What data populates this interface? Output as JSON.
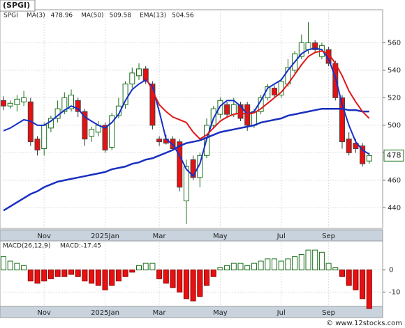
{
  "chart_data": [
    {
      "type": "candlestick",
      "title": "(SPGI)",
      "symbol": "SPGI",
      "symbol_color": "#1a7a1a",
      "categories": [
        null,
        null,
        null,
        null,
        null,
        null,
        "Nov",
        null,
        null,
        null,
        null,
        null,
        null,
        null,
        null,
        "2025Jan",
        null,
        null,
        null,
        null,
        null,
        null,
        null,
        "Mar",
        null,
        null,
        null,
        null,
        null,
        null,
        null,
        null,
        "May",
        null,
        null,
        null,
        null,
        null,
        null,
        null,
        null,
        "Jul",
        null,
        null,
        null,
        null,
        null,
        null,
        "Sep",
        null,
        null,
        null,
        null,
        null,
        null
      ],
      "open": [
        518,
        514,
        515,
        517,
        517,
        490,
        483,
        498,
        505,
        510,
        512,
        518,
        510,
        492,
        495,
        500,
        484,
        507,
        515,
        530,
        536,
        541,
        530,
        490,
        490,
        490,
        488,
        445,
        475,
        462,
        478,
        500,
        508,
        515,
        508,
        515,
        515,
        500,
        510,
        520,
        527,
        522,
        530,
        540,
        550,
        555,
        560,
        550,
        555,
        545,
        520,
        490,
        487,
        485,
        474
      ],
      "high": [
        521,
        518,
        522,
        525,
        520,
        492,
        502,
        507,
        518,
        524,
        526,
        520,
        512,
        499,
        503,
        502,
        509,
        520,
        532,
        542,
        545,
        543,
        532,
        492,
        493,
        492,
        490,
        475,
        478,
        480,
        505,
        514,
        520,
        517,
        520,
        517,
        517,
        512,
        522,
        530,
        529,
        534,
        548,
        554,
        566,
        575,
        562,
        560,
        557,
        547,
        522,
        495,
        490,
        487,
        480
      ],
      "low": [
        511,
        512,
        510,
        514,
        485,
        478,
        478,
        495,
        502,
        508,
        510,
        506,
        485,
        488,
        492,
        480,
        482,
        505,
        512,
        527,
        533,
        530,
        497,
        485,
        486,
        482,
        452,
        428,
        460,
        455,
        476,
        498,
        505,
        505,
        506,
        503,
        496,
        498,
        508,
        518,
        520,
        520,
        528,
        538,
        548,
        552,
        553,
        548,
        543,
        518,
        483,
        478,
        480,
        470,
        472
      ],
      "close": [
        514,
        516,
        519,
        520,
        488,
        482,
        500,
        505,
        512,
        520,
        522,
        510,
        490,
        497,
        500,
        482,
        507,
        514,
        530,
        538,
        541,
        532,
        500,
        488,
        487,
        483,
        455,
        470,
        462,
        478,
        500,
        512,
        518,
        508,
        515,
        505,
        500,
        510,
        520,
        528,
        522,
        532,
        542,
        552,
        560,
        560,
        555,
        558,
        545,
        520,
        488,
        480,
        483,
        472,
        478
      ],
      "up_color": "#1a6e1a",
      "down_color": "#e81010",
      "series": [
        {
          "name": "MA(3)",
          "last": 478.96,
          "color": "#1530c8",
          "values": [
            496,
            498,
            501,
            504,
            503,
            500,
            500,
            503,
            507,
            511,
            514,
            512,
            506,
            503,
            500,
            498,
            502,
            508,
            518,
            526,
            530,
            533,
            528,
            510,
            490,
            486,
            478,
            468,
            463,
            472,
            490,
            505,
            514,
            518,
            518,
            514,
            508,
            510,
            518,
            527,
            530,
            533,
            540,
            546,
            552,
            555,
            556,
            555,
            548,
            535,
            515,
            500,
            488,
            482,
            479
          ]
        },
        {
          "name": "MA(50)",
          "last": 509.58,
          "color": "#1a2fbf",
          "values": [
            438,
            441,
            444,
            447,
            450,
            452,
            455,
            457,
            459,
            460,
            461,
            462,
            463,
            464,
            465,
            466,
            468,
            469,
            470,
            472,
            473,
            475,
            476,
            478,
            480,
            482,
            485,
            487,
            488,
            489,
            491,
            493,
            495,
            496,
            497,
            498,
            499,
            500,
            502,
            503,
            504,
            505,
            507,
            508,
            509,
            510,
            511,
            512,
            512,
            512,
            512,
            511,
            511,
            510,
            510
          ]
        },
        {
          "name": "EMA(13)",
          "last": 504.56,
          "color": "#e01818",
          "values": [
            null,
            null,
            null,
            null,
            null,
            null,
            null,
            null,
            null,
            null,
            null,
            null,
            null,
            null,
            null,
            null,
            null,
            null,
            null,
            null,
            null,
            535,
            525,
            515,
            510,
            506,
            504,
            502,
            495,
            490,
            493,
            498,
            503,
            506,
            508,
            509,
            508,
            509,
            512,
            516,
            520,
            524,
            530,
            537,
            544,
            550,
            553,
            554,
            552,
            545,
            536,
            525,
            517,
            510,
            505
          ]
        }
      ],
      "last_price": 478,
      "ylim": [
        425,
        584
      ],
      "yticks": [
        440,
        460,
        480,
        500,
        520,
        540,
        560
      ],
      "grid": true
    },
    {
      "type": "bar",
      "title": "MACD(26,12,9)",
      "subtitle": "MACD:-17.45",
      "categories": [
        null,
        null,
        null,
        null,
        null,
        null,
        "Nov",
        null,
        null,
        null,
        null,
        null,
        null,
        null,
        null,
        "2025Jan",
        null,
        null,
        null,
        null,
        null,
        null,
        null,
        "Mar",
        null,
        null,
        null,
        null,
        null,
        null,
        null,
        null,
        "May",
        null,
        null,
        null,
        null,
        null,
        null,
        null,
        null,
        "Jul",
        null,
        null,
        null,
        null,
        null,
        null,
        "Sep",
        null,
        null,
        null,
        null,
        null,
        null
      ],
      "values": [
        6,
        4,
        3,
        2,
        -5,
        -6,
        -5,
        -4,
        -3,
        -3,
        -2,
        -3,
        -5,
        -6,
        -7,
        -9,
        -7,
        -5,
        -3,
        -1,
        2,
        3,
        3,
        -4,
        -6,
        -8,
        -10,
        -13,
        -14,
        -12,
        -7,
        -3,
        1,
        2,
        3,
        3,
        2,
        3,
        4,
        5,
        5,
        4,
        5,
        6,
        7,
        9,
        9,
        8,
        3,
        1,
        -3,
        -7,
        -9,
        -13,
        -17.45
      ],
      "up_color": "#1a6e1a",
      "down_color": "#e81010",
      "ylim": [
        -16.5,
        12.5
      ],
      "yticks": [
        0,
        -10
      ],
      "grid": true
    }
  ],
  "footer": "© www.12stocks.com"
}
